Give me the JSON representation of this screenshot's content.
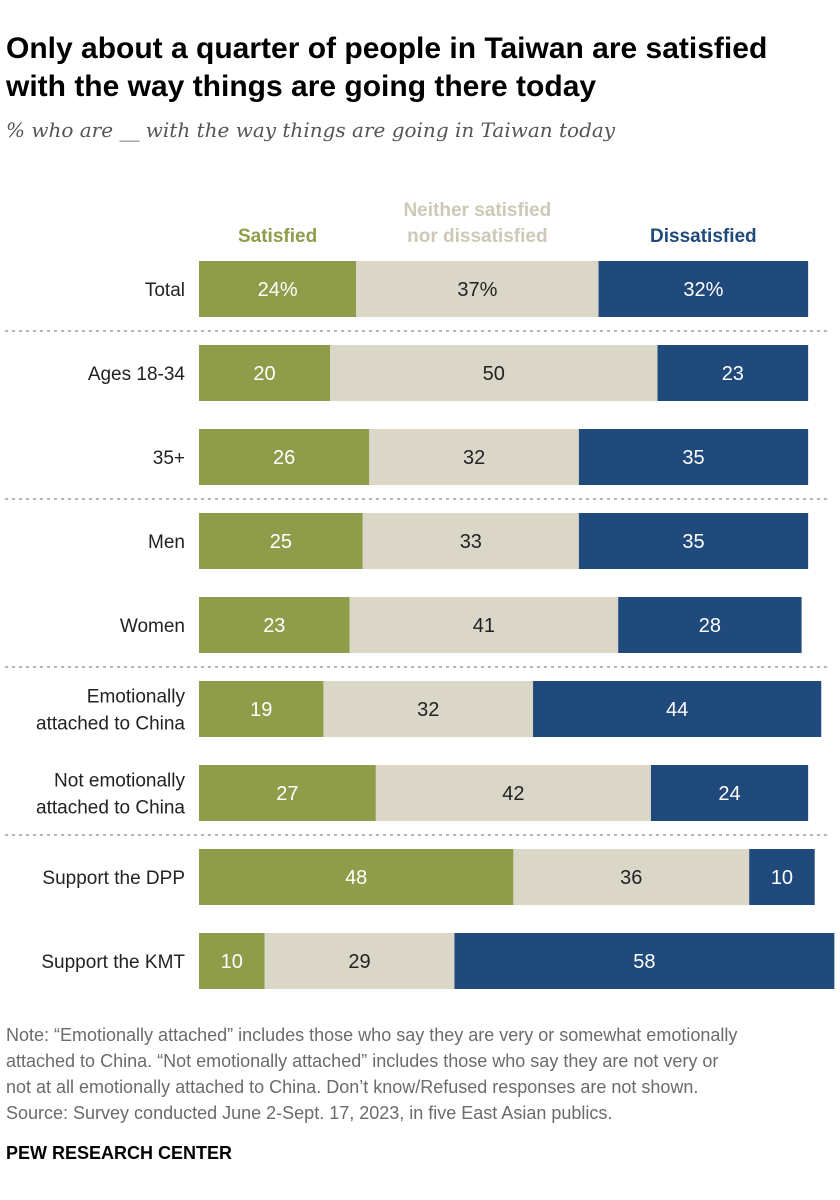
{
  "title_line1": "Only about a quarter of people in Taiwan are satisfied",
  "title_line2": "with the way things are going there today",
  "subtitle": "% who are __ with the way things are going in Taiwan today",
  "note_lines": [
    "Note: “Emotionally attached” includes those who say they are very or somewhat emotionally",
    "attached to China. “Not emotionally attached” includes those who say they are not very or",
    "not at all emotionally attached to China. Don’t know/Refused responses are not shown.",
    "Source: Survey conducted June 2-Sept. 17, 2023, in five East Asian publics."
  ],
  "brand": "PEW RESEARCH CENTER",
  "chart_data": {
    "type": "bar",
    "orientation": "horizontal",
    "stacked": true,
    "legend_position": "top",
    "grid": false,
    "categories": [
      "Total",
      "Ages 18-34",
      "35+",
      "Men",
      "Women",
      "Emotionally\nattached to China",
      "Not emotionally\nattached to China",
      "Support the DPP",
      "Support the KMT"
    ],
    "groups_separated_before": [
      1,
      3,
      5,
      7
    ],
    "series": [
      {
        "name": "Satisfied",
        "color": "#8f9c4a",
        "values": [
          24,
          20,
          26,
          25,
          23,
          19,
          27,
          48,
          10
        ],
        "labels": [
          "24%",
          "20",
          "26",
          "25",
          "23",
          "19",
          "27",
          "48",
          "10"
        ]
      },
      {
        "name": "Neither satisfied\nnor dissatisfied",
        "color": "#dbd7c8",
        "legend_color": "#cdc9b6",
        "values": [
          37,
          50,
          32,
          33,
          41,
          32,
          42,
          36,
          29
        ],
        "labels": [
          "37%",
          "50",
          "32",
          "33",
          "41",
          "32",
          "42",
          "36",
          "29"
        ]
      },
      {
        "name": "Dissatisfied",
        "color": "#214a7c",
        "values": [
          32,
          23,
          35,
          35,
          28,
          44,
          24,
          10,
          58
        ],
        "labels": [
          "32%",
          "23",
          "35",
          "35",
          "28",
          "44",
          "24",
          "10",
          "58"
        ]
      }
    ]
  }
}
